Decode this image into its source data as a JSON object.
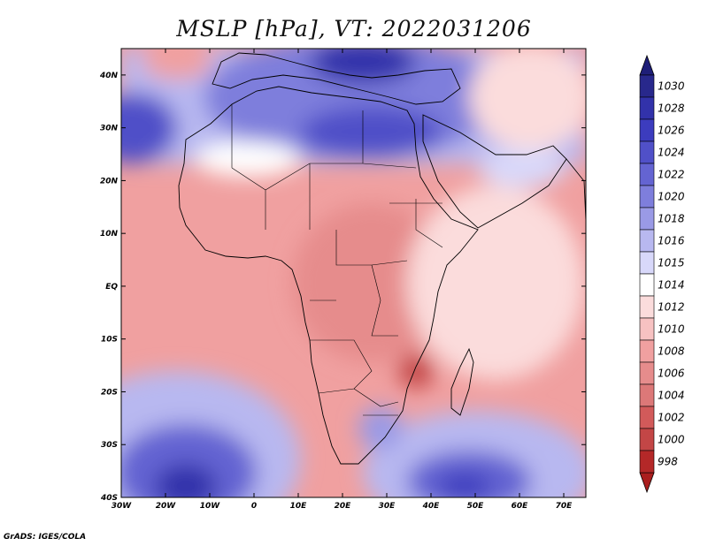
{
  "title": "MSLP [hPa], VT: 2022031206",
  "credit": "GrADS: IGES/COLA",
  "map": {
    "lon_range": [
      -30,
      75
    ],
    "lat_range": [
      -40,
      45
    ],
    "lon_ticks": [
      {
        "value": -30,
        "label": "30W"
      },
      {
        "value": -20,
        "label": "20W"
      },
      {
        "value": -10,
        "label": "10W"
      },
      {
        "value": 0,
        "label": "0"
      },
      {
        "value": 10,
        "label": "10E"
      },
      {
        "value": 20,
        "label": "20E"
      },
      {
        "value": 30,
        "label": "30E"
      },
      {
        "value": 40,
        "label": "40E"
      },
      {
        "value": 50,
        "label": "50E"
      },
      {
        "value": 60,
        "label": "60E"
      },
      {
        "value": 70,
        "label": "70E"
      }
    ],
    "lat_ticks": [
      {
        "value": 40,
        "label": "40N"
      },
      {
        "value": 30,
        "label": "30N"
      },
      {
        "value": 20,
        "label": "20N"
      },
      {
        "value": 10,
        "label": "10N"
      },
      {
        "value": 0,
        "label": "EQ"
      },
      {
        "value": -10,
        "label": "10S"
      },
      {
        "value": -20,
        "label": "20S"
      },
      {
        "value": -30,
        "label": "30S"
      },
      {
        "value": -40,
        "label": "40S"
      }
    ]
  },
  "colorbar": {
    "levels": [
      {
        "label": "1030",
        "color": "#28288c"
      },
      {
        "label": "1028",
        "color": "#3232aa"
      },
      {
        "label": "1026",
        "color": "#3c3cbe"
      },
      {
        "label": "1024",
        "color": "#5050c8"
      },
      {
        "label": "1022",
        "color": "#6464d2"
      },
      {
        "label": "1020",
        "color": "#7e7edc"
      },
      {
        "label": "1018",
        "color": "#9a9ae6"
      },
      {
        "label": "1016",
        "color": "#b8b8f0"
      },
      {
        "label": "1015",
        "color": "#d8d8fa"
      },
      {
        "label": "1014",
        "color": "#ffffff"
      },
      {
        "label": "1012",
        "color": "#fbdcdc"
      },
      {
        "label": "1010",
        "color": "#f7c2c2"
      },
      {
        "label": "1008",
        "color": "#f0a0a0"
      },
      {
        "label": "1006",
        "color": "#e68c8c"
      },
      {
        "label": "1004",
        "color": "#dc7878"
      },
      {
        "label": "1002",
        "color": "#d25a5a"
      },
      {
        "label": "1000",
        "color": "#c34646"
      },
      {
        "label": "998",
        "color": "#b42828"
      }
    ],
    "top_cap_color": "#1e1e78",
    "bottom_cap_color": "#aa1e1e"
  }
}
